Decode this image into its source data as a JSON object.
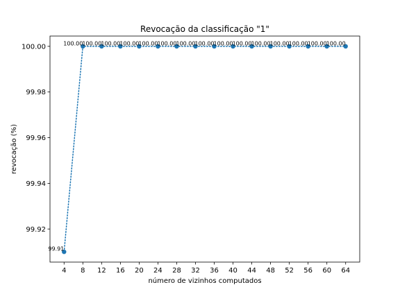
{
  "chart_data": {
    "type": "line",
    "title": "Revocação da classificação \"1\"",
    "xlabel": "número de vizinhos computados",
    "ylabel": "revocação (%)",
    "x": [
      4,
      8,
      12,
      16,
      20,
      24,
      28,
      32,
      36,
      40,
      44,
      48,
      52,
      56,
      60,
      64
    ],
    "series": [
      {
        "values": [
          99.91,
          100.0,
          100.0,
          100.0,
          100.0,
          100.0,
          100.0,
          100.0,
          100.0,
          100.0,
          100.0,
          100.0,
          100.0,
          100.0,
          100.0,
          100.0
        ],
        "labels": [
          "99.91",
          "100.00",
          "100.00",
          "100.00",
          "100.00",
          "100.00",
          "100.00",
          "100.00",
          "100.00",
          "100.00",
          "100.00",
          "100.00",
          "100.00",
          "100.00",
          "100.00",
          "100.00"
        ],
        "color": "#1f77b4",
        "line_style": "dotted",
        "marker": "circle"
      }
    ],
    "xticks": [
      "4",
      "8",
      "12",
      "16",
      "20",
      "24",
      "28",
      "32",
      "36",
      "40",
      "44",
      "48",
      "52",
      "56",
      "60",
      "64"
    ],
    "yticks": [
      "99.92",
      "99.94",
      "99.96",
      "99.98",
      "100.00"
    ],
    "ytick_values": [
      99.92,
      99.94,
      99.96,
      99.98,
      100.0
    ],
    "xlim": [
      1.0,
      67.0
    ],
    "ylim": [
      99.9055,
      100.0045
    ],
    "grid": false,
    "legend": "none"
  }
}
